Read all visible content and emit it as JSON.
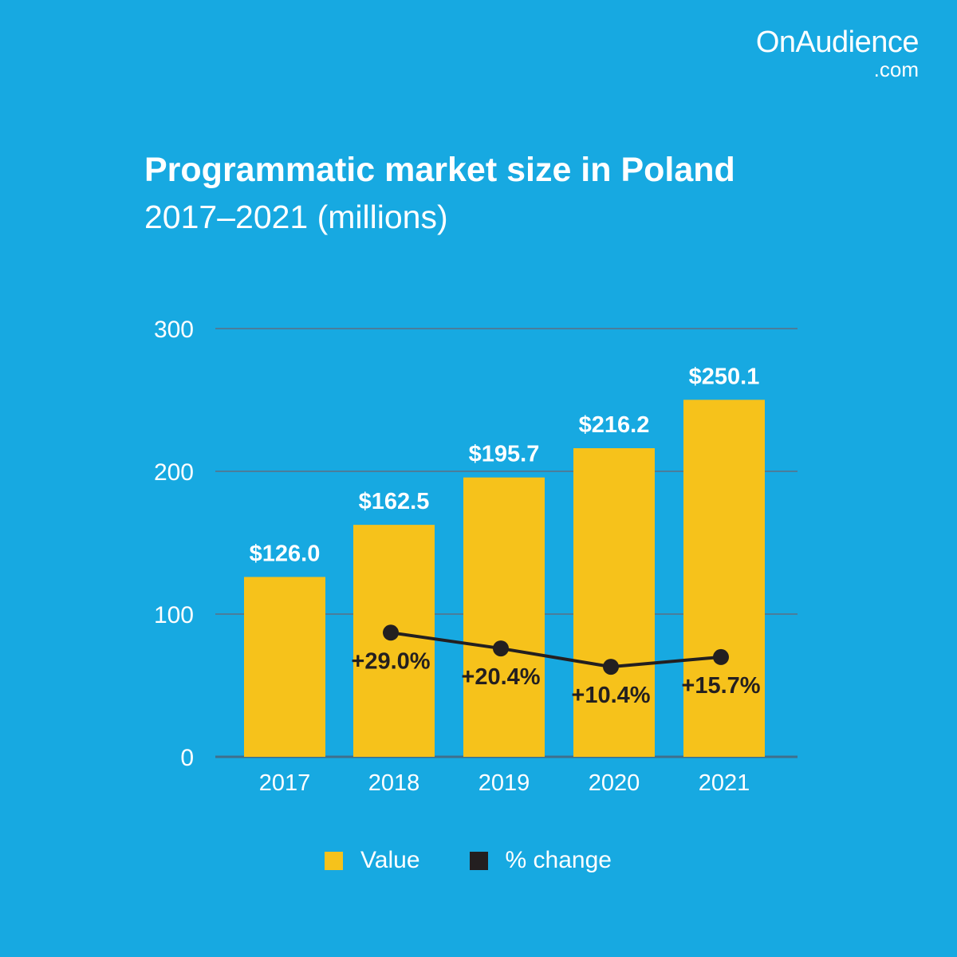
{
  "brand": {
    "name": "OnAudience",
    "domain": ".com"
  },
  "colors": {
    "background": "#17a9e1",
    "bar": "#f6c21b",
    "line": "#231f20",
    "grid": "#4a7d9b"
  },
  "chart_data": {
    "type": "bar",
    "title": "Programmatic market size in Poland",
    "subtitle": "2017–2021 (millions)",
    "categories": [
      "2017",
      "2018",
      "2019",
      "2020",
      "2021"
    ],
    "ylim": [
      0,
      300
    ],
    "yticks": [
      0,
      100,
      200,
      300
    ],
    "series": [
      {
        "name": "Value",
        "type": "bar",
        "values": [
          126.0,
          162.5,
          195.7,
          216.2,
          250.1
        ],
        "labels": [
          "$126.0",
          "$162.5",
          "$195.7",
          "$216.2",
          "$250.1"
        ]
      },
      {
        "name": "% change",
        "type": "line",
        "values": [
          null,
          29.0,
          20.4,
          10.4,
          15.7
        ],
        "labels": [
          null,
          "+29.0%",
          "+20.4%",
          "+10.4%",
          "+15.7%"
        ]
      }
    ],
    "legend": [
      {
        "label": "Value",
        "color": "#f6c21b"
      },
      {
        "label": "% change",
        "color": "#231f20"
      }
    ]
  }
}
